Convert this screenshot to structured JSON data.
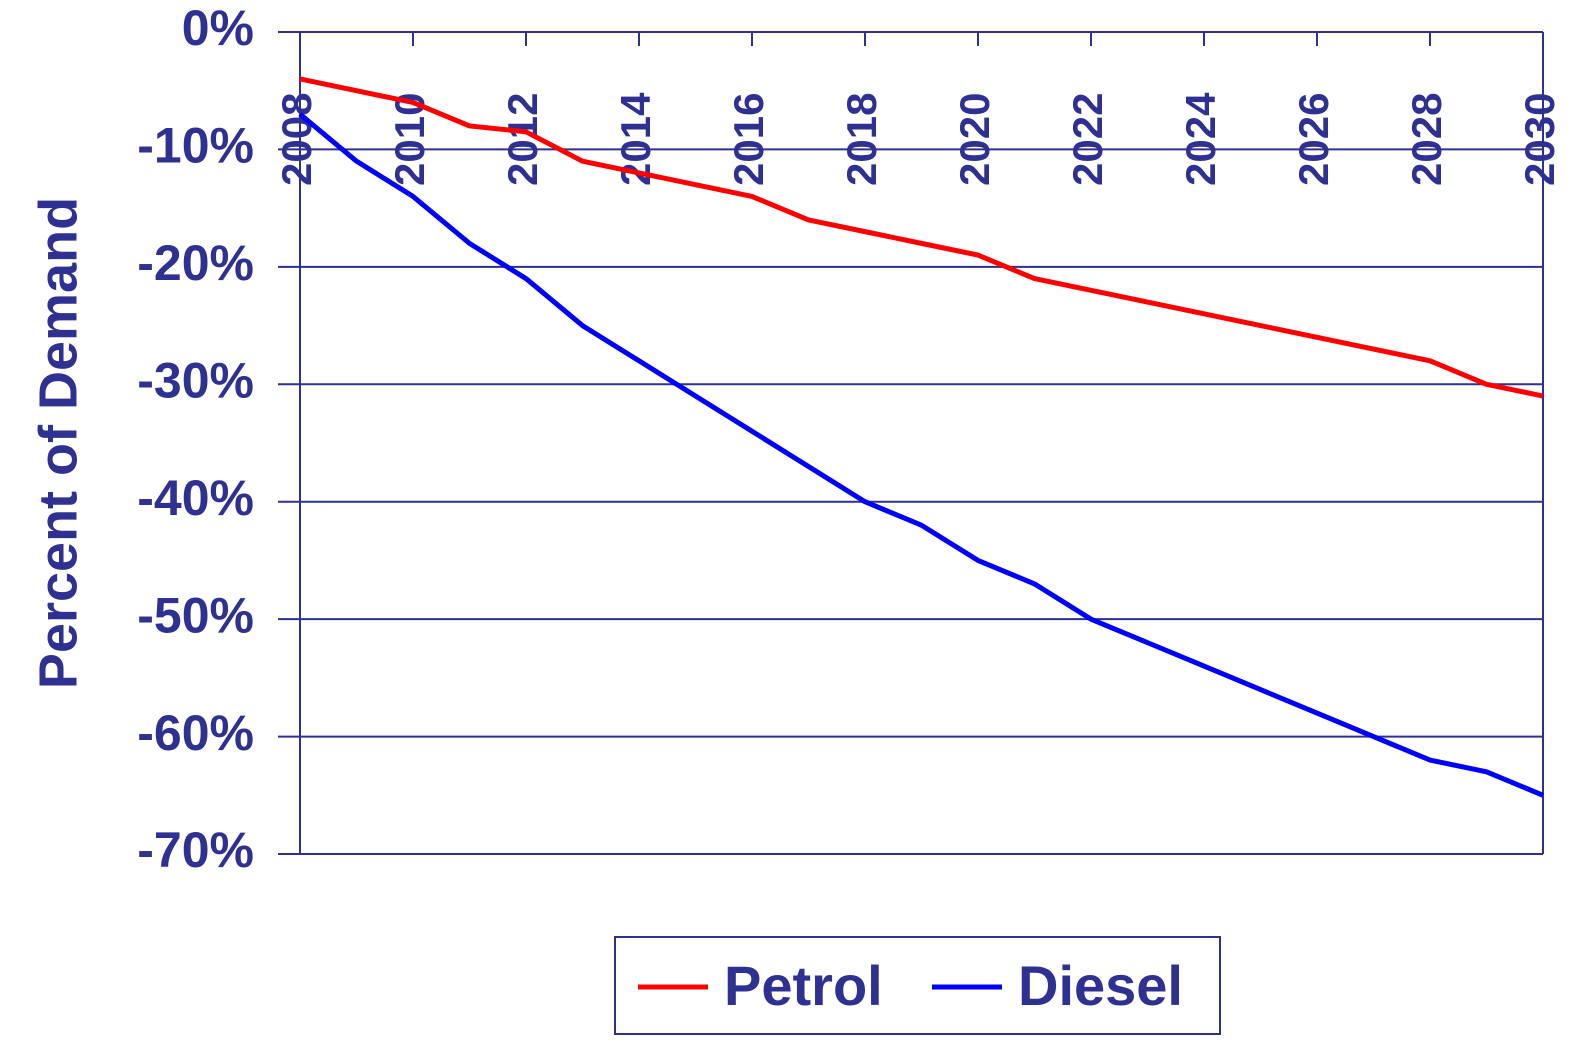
{
  "chart_data": {
    "type": "line",
    "y_label": "Percent of Demand",
    "x": [
      2008,
      2009,
      2010,
      2011,
      2012,
      2013,
      2014,
      2015,
      2016,
      2017,
      2018,
      2019,
      2020,
      2021,
      2022,
      2023,
      2024,
      2025,
      2026,
      2027,
      2028,
      2029,
      2030
    ],
    "series": [
      {
        "name": "Petrol",
        "color": "#ff0000",
        "values": [
          -4,
          -5,
          -6,
          -8,
          -8.5,
          -11,
          -12,
          -13,
          -14,
          -16,
          -17,
          -18,
          -19,
          -21,
          -22,
          -23,
          -24,
          -25,
          -26,
          -27,
          -28,
          -30,
          -31
        ]
      },
      {
        "name": "Diesel",
        "color": "#0000ff",
        "values": [
          -7,
          -11,
          -14,
          -18,
          -21,
          -25,
          -28,
          -31,
          -34,
          -37,
          -40,
          -42,
          -45,
          -47,
          -50,
          -52,
          -54,
          -56,
          -58,
          -60,
          -62,
          -63,
          -65
        ]
      }
    ],
    "xlim": [
      2008,
      2030
    ],
    "xticks": [
      2008,
      2010,
      2012,
      2014,
      2016,
      2018,
      2020,
      2022,
      2024,
      2026,
      2028,
      2030
    ],
    "ylim": [
      -70,
      0
    ],
    "yticks": [
      {
        "value": 0,
        "label": "0%"
      },
      {
        "value": -10,
        "label": "-10%"
      },
      {
        "value": -20,
        "label": "-20%"
      },
      {
        "value": -30,
        "label": "-30%"
      },
      {
        "value": -40,
        "label": "-40%"
      },
      {
        "value": -50,
        "label": "-50%"
      },
      {
        "value": -60,
        "label": "-60%"
      },
      {
        "value": -70,
        "label": "-70%"
      }
    ],
    "grid": true,
    "axis_color": "#2e3192",
    "legend": "bottom"
  }
}
